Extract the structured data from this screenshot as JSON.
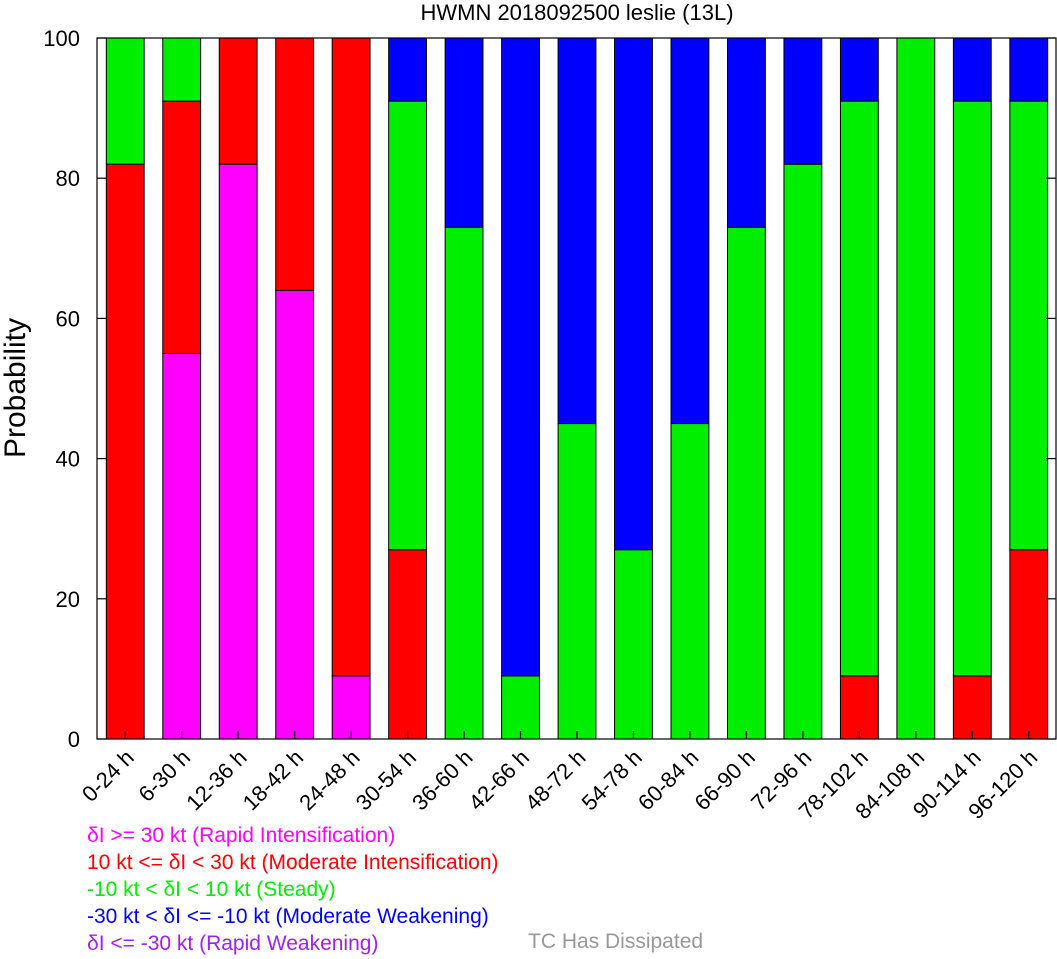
{
  "chart_data": {
    "type": "bar",
    "stacked": true,
    "title": "HWMN 2018092500 leslie (13L)",
    "xlabel": "",
    "ylabel": "Probability",
    "ylim": [
      0,
      100
    ],
    "yticks": [
      "0",
      "20",
      "40",
      "60",
      "80",
      "100"
    ],
    "categories": [
      "0-24 h",
      "6-30 h",
      "12-36 h",
      "18-42 h",
      "24-48 h",
      "30-54 h",
      "36-60 h",
      "42-66 h",
      "48-72 h",
      "54-78 h",
      "60-84 h",
      "66-90 h",
      "72-96 h",
      "78-102 h",
      "84-108 h",
      "90-114 h",
      "96-120 h"
    ],
    "series": [
      {
        "key": "ri",
        "color": "#ff00ff",
        "values": [
          0,
          55,
          82,
          64,
          9,
          0,
          0,
          0,
          0,
          0,
          0,
          0,
          0,
          0,
          0,
          0,
          0
        ]
      },
      {
        "key": "mi",
        "color": "#ff0000",
        "values": [
          82,
          36,
          18,
          36,
          91,
          27,
          0,
          0,
          0,
          0,
          0,
          0,
          0,
          9,
          0,
          9,
          27
        ]
      },
      {
        "key": "st",
        "color": "#00ee00",
        "values": [
          18,
          9,
          0,
          0,
          0,
          64,
          73,
          9,
          45,
          27,
          45,
          73,
          82,
          82,
          100,
          82,
          64
        ]
      },
      {
        "key": "mw",
        "color": "#0000ff",
        "values": [
          0,
          0,
          0,
          0,
          0,
          9,
          27,
          91,
          55,
          73,
          55,
          27,
          18,
          9,
          0,
          9,
          9
        ]
      },
      {
        "key": "rw",
        "color": "#a020f0",
        "values": [
          0,
          0,
          0,
          0,
          0,
          0,
          0,
          0,
          0,
          0,
          0,
          0,
          0,
          0,
          0,
          0,
          0
        ]
      }
    ],
    "grid": false,
    "legend_position": "bottom-left"
  },
  "legend": [
    {
      "text": "δI >= 30 kt (Rapid Intensification)",
      "color": "#ff00ff"
    },
    {
      "text": "10 kt <= δI < 30 kt (Moderate Intensification)",
      "color": "#ff0000"
    },
    {
      "text": "-10 kt < δI < 10 kt (Steady)",
      "color": "#00ee00"
    },
    {
      "text": "-30 kt < δI <= -10 kt (Moderate Weakening)",
      "color": "#0000ff"
    },
    {
      "text": "δI <= -30 kt (Rapid Weakening)",
      "color": "#a020f0"
    }
  ],
  "dissipated_label": "TC Has Dissipated",
  "dissipated_color": "#999999"
}
